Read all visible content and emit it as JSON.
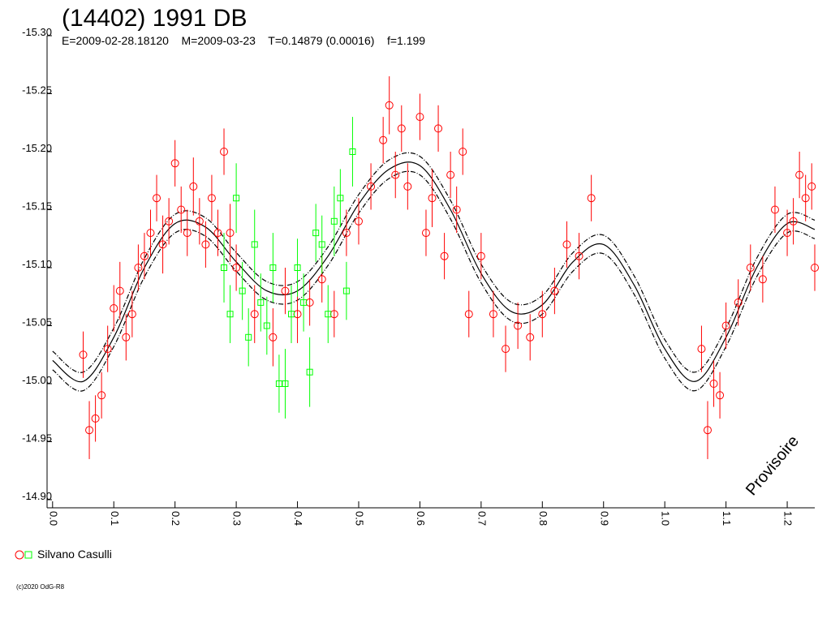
{
  "chart_data": {
    "type": "scatter",
    "title": "(14402) 1991 DB",
    "subtitle": "E=2009-02-28.18120    M=2009-03-23    T=0.14879 (0.00016)    f=1.199",
    "annotation": "Provisoire",
    "footer": "(c)2020 OdG-R8",
    "legend": {
      "label": "Silvano Casulli"
    },
    "y_inverted": true,
    "xlim": [
      -0.009,
      1.245
    ],
    "ylim": [
      -15.3,
      -14.9
    ],
    "xticks": [
      {
        "value": 0,
        "label": "0.0"
      },
      0.1,
      0.2,
      0.3,
      0.4,
      0.5,
      0.6,
      0.7,
      0.8,
      0.9,
      {
        "value": 1,
        "label": "1.0"
      },
      1.1,
      1.2
    ],
    "yticks": [
      {
        "value": -15.3,
        "label": "-15.30"
      },
      {
        "value": -15.25,
        "label": "-15.25"
      },
      {
        "value": -15.2,
        "label": "-15.20"
      },
      {
        "value": -15.15,
        "label": "-15.15"
      },
      {
        "value": -15.1,
        "label": "-15.10"
      },
      {
        "value": -15.05,
        "label": "-15.05"
      },
      {
        "value": -15,
        "label": "-15.00"
      },
      {
        "value": -14.95,
        "label": "-14.95"
      },
      {
        "value": -14.9,
        "label": "-14.90"
      }
    ],
    "series": [
      {
        "marker": "circle",
        "color": "#ff0000",
        "x": [
          0.05,
          0.06,
          0.07,
          0.08,
          0.09,
          0.1,
          0.11,
          0.12,
          0.13,
          0.14,
          0.15,
          0.16,
          0.17,
          0.18,
          0.19,
          0.2,
          0.21,
          0.22,
          0.23,
          0.24,
          0.25,
          0.26,
          0.27,
          0.28,
          0.29,
          0.3,
          0.33,
          0.36,
          0.38,
          0.4,
          0.42,
          0.44,
          0.46,
          0.48,
          0.5,
          0.52,
          0.54,
          0.55,
          0.56,
          0.57,
          0.58,
          0.6,
          0.61,
          0.62,
          0.63,
          0.64,
          0.65,
          0.66,
          0.67,
          0.68,
          0.7,
          0.72,
          0.74,
          0.76,
          0.78,
          0.8,
          0.82,
          0.84,
          0.86,
          0.88,
          1.06,
          1.07,
          1.08,
          1.09,
          1.1,
          1.12,
          1.14,
          1.16,
          1.18,
          1.2,
          1.21,
          1.22,
          1.23,
          1.24,
          1.245
        ],
        "values": [
          -15.025,
          -14.96,
          -14.97,
          -14.99,
          -15.03,
          -15.065,
          -15.08,
          -15.04,
          -15.06,
          -15.1,
          -15.11,
          -15.13,
          -15.16,
          -15.12,
          -15.14,
          -15.19,
          -15.15,
          -15.13,
          -15.17,
          -15.14,
          -15.12,
          -15.16,
          -15.13,
          -15.2,
          -15.13,
          -15.1,
          -15.06,
          -15.04,
          -15.08,
          -15.06,
          -15.07,
          -15.09,
          -15.06,
          -15.13,
          -15.14,
          -15.17,
          -15.21,
          -15.24,
          -15.18,
          -15.22,
          -15.17,
          -15.23,
          -15.13,
          -15.16,
          -15.22,
          -15.11,
          -15.18,
          -15.15,
          -15.2,
          -15.06,
          -15.11,
          -15.06,
          -15.03,
          -15.05,
          -15.04,
          -15.06,
          -15.08,
          -15.12,
          -15.11,
          -15.16,
          -15.03,
          -14.96,
          -15.0,
          -14.99,
          -15.05,
          -15.07,
          -15.1,
          -15.09,
          -15.15,
          -15.13,
          -15.14,
          -15.18,
          -15.16,
          -15.17,
          -15.1
        ],
        "errors": [
          0.02,
          0.025,
          0.02,
          0.02,
          0.02,
          0.02,
          0.025,
          0.02,
          0.02,
          0.02,
          0.02,
          0.02,
          0.02,
          0.025,
          0.02,
          0.02,
          0.02,
          0.02,
          0.025,
          0.02,
          0.02,
          0.02,
          0.02,
          0.02,
          0.025,
          0.02,
          0.025,
          0.025,
          0.02,
          0.025,
          0.02,
          0.02,
          0.02,
          0.02,
          0.02,
          0.02,
          0.02,
          0.025,
          0.02,
          0.02,
          0.02,
          0.02,
          0.02,
          0.025,
          0.02,
          0.02,
          0.02,
          0.02,
          0.02,
          0.02,
          0.02,
          0.02,
          0.02,
          0.02,
          0.02,
          0.02,
          0.02,
          0.02,
          0.02,
          0.02,
          0.02,
          0.025,
          0.02,
          0.02,
          0.02,
          0.02,
          0.02,
          0.02,
          0.02,
          0.02,
          0.02,
          0.02,
          0.02,
          0.02,
          0.02
        ]
      },
      {
        "marker": "square",
        "color": "#00ff00",
        "x": [
          0.28,
          0.29,
          0.3,
          0.31,
          0.32,
          0.33,
          0.34,
          0.35,
          0.36,
          0.37,
          0.38,
          0.39,
          0.4,
          0.41,
          0.42,
          0.43,
          0.44,
          0.45,
          0.46,
          0.47,
          0.48,
          0.49
        ],
        "values": [
          -15.1,
          -15.06,
          -15.16,
          -15.08,
          -15.04,
          -15.12,
          -15.07,
          -15.05,
          -15.1,
          -15.0,
          -15.0,
          -15.06,
          -15.1,
          -15.07,
          -15.01,
          -15.13,
          -15.12,
          -15.06,
          -15.14,
          -15.16,
          -15.08,
          -15.2
        ],
        "errors": [
          0.03,
          0.025,
          0.03,
          0.025,
          0.025,
          0.03,
          0.025,
          0.025,
          0.03,
          0.025,
          0.03,
          0.025,
          0.025,
          0.025,
          0.03,
          0.025,
          0.025,
          0.025,
          0.03,
          0.025,
          0.025,
          0.03
        ]
      }
    ],
    "curve_x": [
      0,
      0.05,
      0.1,
      0.15,
      0.2,
      0.25,
      0.3,
      0.35,
      0.4,
      0.45,
      0.5,
      0.55,
      0.6,
      0.65,
      0.7,
      0.75,
      0.8,
      0.85,
      0.9,
      0.95,
      1.0,
      1.05,
      1.1,
      1.15,
      1.2,
      1.245
    ],
    "curves": [
      {
        "style": "dashed",
        "color": "#000000",
        "values": [
          -15.028,
          -15.01,
          -15.048,
          -15.108,
          -15.146,
          -15.143,
          -15.113,
          -15.088,
          -15.088,
          -15.118,
          -15.163,
          -15.193,
          -15.196,
          -15.158,
          -15.103,
          -15.07,
          -15.076,
          -15.113,
          -15.128,
          -15.093,
          -15.038,
          -15.01,
          -15.048,
          -15.108,
          -15.146,
          -15.141
        ]
      },
      {
        "style": "solid",
        "color": "#000000",
        "values": [
          -15.02,
          -15.002,
          -15.04,
          -15.1,
          -15.138,
          -15.135,
          -15.105,
          -15.08,
          -15.08,
          -15.11,
          -15.155,
          -15.185,
          -15.188,
          -15.15,
          -15.095,
          -15.062,
          -15.068,
          -15.105,
          -15.12,
          -15.085,
          -15.03,
          -15.002,
          -15.04,
          -15.1,
          -15.138,
          -15.133
        ]
      },
      {
        "style": "dashed",
        "color": "#000000",
        "values": [
          -15.012,
          -14.994,
          -15.032,
          -15.092,
          -15.13,
          -15.127,
          -15.097,
          -15.072,
          -15.072,
          -15.102,
          -15.147,
          -15.177,
          -15.18,
          -15.142,
          -15.087,
          -15.054,
          -15.06,
          -15.097,
          -15.112,
          -15.077,
          -15.022,
          -14.994,
          -15.032,
          -15.092,
          -15.13,
          -15.125
        ]
      }
    ]
  }
}
